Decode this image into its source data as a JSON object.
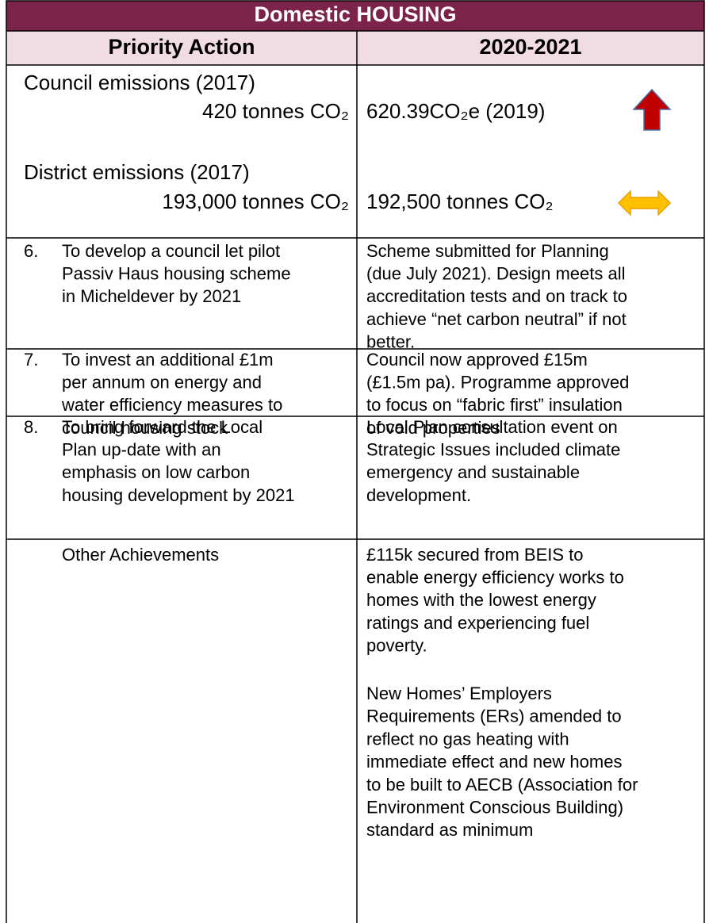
{
  "table": {
    "title": "Domestic HOUSING",
    "headers": [
      "Priority Action",
      "2020-2021"
    ],
    "emissions": [
      {
        "label": "Council emissions (2017)",
        "baseline": "420 tonnes CO₂",
        "current": "620.39CO₂e  (2019)"
      },
      {
        "label": "District emissions (2017)",
        "baseline": "193,000 tonnes CO₂",
        "current": "192,500 tonnes CO₂"
      }
    ],
    "rows": [
      {
        "number": "6.",
        "action": [
          "To develop a council let pilot",
          "Passiv Haus housing scheme",
          "in  Micheldever by 2021"
        ],
        "progress": [
          "Scheme submitted for Planning",
          "(due July 2021). Design meets all",
          "accreditation tests and on track to",
          "achieve “net carbon neutral” if not",
          "better."
        ]
      },
      {
        "number": "7.",
        "action": [
          "To invest an additional £1m",
          "per annum on energy and",
          "water efficiency measures to",
          "council housing stock"
        ],
        "progress": [
          "Council now approved £15m",
          "(£1.5m pa). Programme approved",
          "to focus on “fabric first” insulation",
          "of void properties"
        ]
      },
      {
        "number": "8.",
        "action": [
          "To bring forward the Local",
          "Plan up-date with an",
          "emphasis on low carbon",
          "housing development by 2021"
        ],
        "progress": [
          "Local Plan consultation event on",
          "Strategic Issues included climate",
          "emergency and sustainable",
          "development."
        ]
      }
    ],
    "other": {
      "label": "Other Achievements",
      "paragraphs": [
        [
          "£115k secured from BEIS to",
          "enable energy efficiency works to",
          "homes with the lowest energy",
          "ratings and experiencing fuel",
          "poverty."
        ],
        [
          "New Homes’ Employers",
          "Requirements (ERs) amended to",
          "reflect no gas heating with",
          "immediate effect and new homes",
          "to be built to AECB (Association for",
          "Environment Conscious Building)",
          "standard as minimum"
        ]
      ]
    }
  }
}
